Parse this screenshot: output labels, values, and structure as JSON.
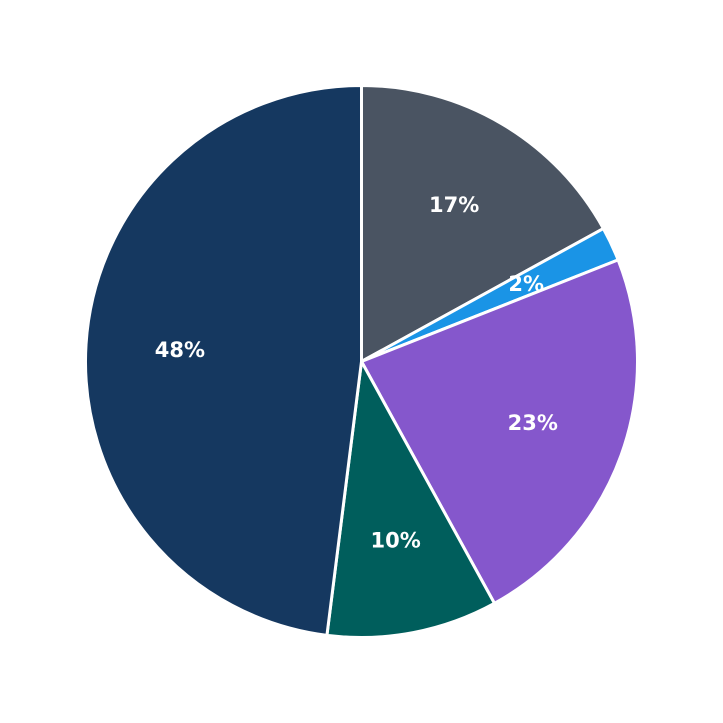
{
  "chart_data": {
    "type": "pie",
    "title": "",
    "start_angle_deg": 90,
    "direction": "clockwise",
    "slices": [
      {
        "label": "17%",
        "value": 17,
        "color": "#4a5462"
      },
      {
        "label": "2%",
        "value": 2,
        "color": "#1a94e6"
      },
      {
        "label": "23%",
        "value": 23,
        "color": "#8557cc"
      },
      {
        "label": "10%",
        "value": 10,
        "color": "#005e5c"
      },
      {
        "label": "48%",
        "value": 48,
        "color": "#153860"
      }
    ]
  }
}
